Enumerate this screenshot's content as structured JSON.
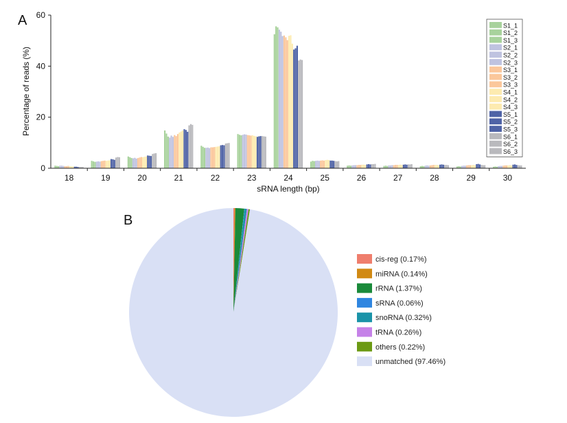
{
  "colors": {
    "S1": "#a8d29c",
    "S2": "#bfc3e0",
    "S3": "#fbc79b",
    "S4": "#fdebb0",
    "S5": "#4f63a6",
    "S6": "#b9b9bd",
    "axis": "#222222"
  },
  "chart_data": [
    {
      "type": "bar",
      "panel_label": "A",
      "title": "",
      "xlabel": "sRNA length (bp)",
      "ylabel": "Percentage of reads (%)",
      "ylim": [
        0,
        60
      ],
      "yticks": [
        0,
        20,
        40,
        60
      ],
      "legend_position": "top-right",
      "categories": [
        "18",
        "19",
        "20",
        "21",
        "22",
        "23",
        "24",
        "25",
        "26",
        "27",
        "28",
        "29",
        "30"
      ],
      "series": [
        {
          "name": "S1_1",
          "group": "S1",
          "values": [
            1.0,
            2.9,
            4.6,
            14.8,
            8.8,
            13.4,
            52.5,
            2.6,
            1.0,
            0.9,
            0.8,
            0.7,
            0.6
          ]
        },
        {
          "name": "S1_2",
          "group": "S1",
          "values": [
            0.9,
            2.7,
            4.3,
            13.6,
            8.4,
            13.1,
            55.6,
            2.9,
            1.1,
            1.0,
            0.9,
            0.8,
            0.7
          ]
        },
        {
          "name": "S1_3",
          "group": "S1",
          "values": [
            0.8,
            2.5,
            4.0,
            12.4,
            8.0,
            12.9,
            55.2,
            2.8,
            1.0,
            0.9,
            0.8,
            0.7,
            0.6
          ]
        },
        {
          "name": "S2_1",
          "group": "S2",
          "values": [
            1.0,
            2.6,
            3.9,
            12.0,
            8.0,
            13.1,
            54.3,
            2.9,
            1.1,
            1.1,
            1.0,
            0.9,
            0.8
          ]
        },
        {
          "name": "S2_2",
          "group": "S2",
          "values": [
            1.0,
            2.7,
            4.1,
            12.8,
            8.1,
            13.3,
            53.5,
            3.0,
            1.2,
            1.1,
            1.1,
            1.0,
            0.9
          ]
        },
        {
          "name": "S2_3",
          "group": "S2",
          "values": [
            0.9,
            2.6,
            3.8,
            12.3,
            7.9,
            13.2,
            51.8,
            2.9,
            1.2,
            1.2,
            1.0,
            1.0,
            0.9
          ]
        },
        {
          "name": "S3_1",
          "group": "S3",
          "values": [
            0.8,
            2.8,
            4.0,
            13.0,
            8.2,
            13.0,
            52.0,
            3.0,
            1.2,
            1.2,
            1.1,
            1.1,
            1.0
          ]
        },
        {
          "name": "S3_2",
          "group": "S3",
          "values": [
            0.8,
            2.9,
            4.2,
            12.6,
            8.2,
            12.9,
            51.3,
            3.1,
            1.3,
            1.3,
            1.2,
            1.2,
            1.1
          ]
        },
        {
          "name": "S3_3",
          "group": "S3",
          "values": [
            0.9,
            3.0,
            4.4,
            13.4,
            8.3,
            12.8,
            50.2,
            3.0,
            1.3,
            1.3,
            1.3,
            1.2,
            1.1
          ]
        },
        {
          "name": "S4_1",
          "group": "S4",
          "values": [
            0.8,
            2.9,
            4.3,
            14.0,
            8.4,
            12.9,
            51.9,
            3.2,
            1.4,
            1.3,
            1.3,
            1.2,
            1.1
          ]
        },
        {
          "name": "S4_2",
          "group": "S4",
          "values": [
            0.7,
            3.0,
            4.5,
            14.4,
            8.5,
            12.7,
            52.1,
            3.3,
            1.4,
            1.4,
            1.3,
            1.3,
            1.2
          ]
        },
        {
          "name": "S4_3",
          "group": "S4",
          "values": [
            0.7,
            3.1,
            4.6,
            14.8,
            8.6,
            12.5,
            48.8,
            3.2,
            1.3,
            1.3,
            1.2,
            1.2,
            1.1
          ]
        },
        {
          "name": "S5_1",
          "group": "S5",
          "values": [
            0.6,
            3.6,
            5.0,
            15.3,
            9.0,
            12.3,
            46.5,
            3.0,
            1.5,
            1.4,
            1.4,
            1.6,
            1.4
          ]
        },
        {
          "name": "S5_2",
          "group": "S5",
          "values": [
            0.6,
            3.5,
            4.9,
            15.0,
            9.1,
            12.5,
            47.0,
            3.0,
            1.6,
            1.5,
            1.5,
            1.7,
            1.5
          ]
        },
        {
          "name": "S5_3",
          "group": "S5",
          "values": [
            0.5,
            3.3,
            4.8,
            14.3,
            9.0,
            12.6,
            48.0,
            2.9,
            1.5,
            1.4,
            1.4,
            1.5,
            1.3
          ]
        },
        {
          "name": "S6_1",
          "group": "S6",
          "values": [
            0.5,
            4.2,
            5.6,
            16.8,
            9.7,
            12.6,
            42.2,
            2.8,
            1.6,
            1.5,
            1.3,
            1.3,
            1.2
          ]
        },
        {
          "name": "S6_2",
          "group": "S6",
          "values": [
            0.5,
            4.4,
            5.8,
            17.3,
            9.8,
            12.5,
            42.6,
            2.7,
            1.6,
            1.5,
            1.3,
            1.2,
            1.1
          ]
        },
        {
          "name": "S6_3",
          "group": "S6",
          "values": [
            0.5,
            4.3,
            5.9,
            17.0,
            9.9,
            12.4,
            42.4,
            2.8,
            1.7,
            1.6,
            1.2,
            1.2,
            1.1
          ]
        }
      ]
    },
    {
      "type": "pie",
      "panel_label": "B",
      "title": "",
      "legend_position": "right",
      "slices": [
        {
          "name": "cis-reg",
          "value": 0.17,
          "label": "cis-reg (0.17%)",
          "color": "#ef7e6d"
        },
        {
          "name": "miRNA",
          "value": 0.14,
          "label": "miRNA (0.14%)",
          "color": "#d18a14"
        },
        {
          "name": "rRNA",
          "value": 1.37,
          "label": "rRNA (1.37%)",
          "color": "#1a8a3a"
        },
        {
          "name": "sRNA",
          "value": 0.06,
          "label": "sRNA (0.06%)",
          "color": "#2f86e0"
        },
        {
          "name": "snoRNA",
          "value": 0.32,
          "label": "snoRNA (0.32%)",
          "color": "#1a93a8"
        },
        {
          "name": "tRNA",
          "value": 0.26,
          "label": "tRNA (0.26%)",
          "color": "#c582e8"
        },
        {
          "name": "others",
          "value": 0.22,
          "label": "others (0.22%)",
          "color": "#6c9a14"
        },
        {
          "name": "unmatched",
          "value": 97.46,
          "label": "unmatched (97.46%)",
          "color": "#d9e0f5"
        }
      ]
    }
  ]
}
